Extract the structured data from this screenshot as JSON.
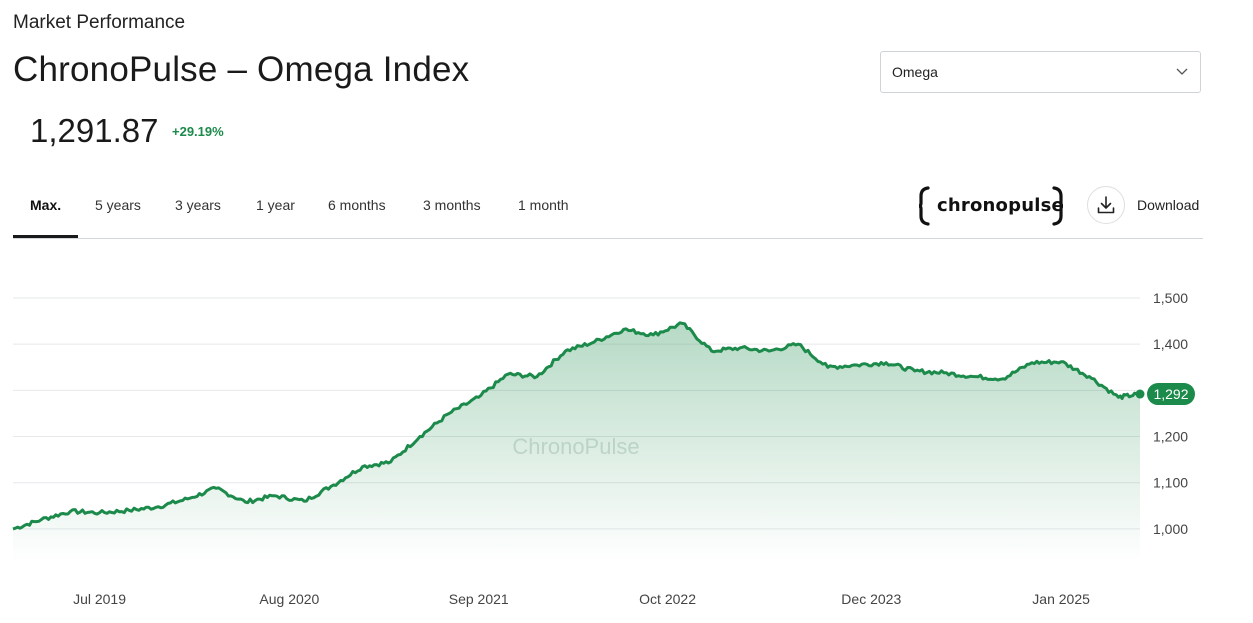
{
  "header": {
    "eyebrow": "Market Performance",
    "title": "ChronoPulse – Omega Index"
  },
  "index_select": {
    "value": "Omega",
    "icon": "chevron-down-icon"
  },
  "quote": {
    "price": "1,291.87",
    "change": "+29.19%",
    "change_color": "#1b8a4a"
  },
  "tabs": [
    {
      "label": "Max.",
      "active": true
    },
    {
      "label": "5 years",
      "active": false
    },
    {
      "label": "3 years",
      "active": false
    },
    {
      "label": "1 year",
      "active": false
    },
    {
      "label": "6 months",
      "active": false
    },
    {
      "label": "3 months",
      "active": false
    },
    {
      "label": "1 month",
      "active": false
    }
  ],
  "brand": {
    "logo_text": "chronopulse"
  },
  "download": {
    "label": "Download",
    "icon": "download-icon"
  },
  "chart_data": {
    "type": "area",
    "watermark": "ChronoPulse",
    "line_color": "#1b8a4a",
    "fill_color": "#1b8a4a",
    "y_ticks": [
      "1,000",
      "1,100",
      "1,200",
      "1,300",
      "1,400",
      "1,500"
    ],
    "y_tick_values": [
      1000,
      1100,
      1200,
      1300,
      1400,
      1500
    ],
    "ylim": [
      950,
      1500
    ],
    "y_labels_shown": [
      "1,000",
      "1,100",
      "1,200",
      "1,400",
      "1,500"
    ],
    "x_ticks": [
      "Jul 2019",
      "Aug 2020",
      "Sep 2021",
      "Oct 2022",
      "Dec 2023",
      "Jan 2025"
    ],
    "x_tick_values": [
      "2019-07-01",
      "2020-08-01",
      "2021-09-01",
      "2022-10-01",
      "2023-12-01",
      "2025-01-01"
    ],
    "last_value_label": "1,292",
    "series": [
      {
        "x": [
          "2019-01-01",
          "2019-03-01",
          "2019-05-01",
          "2019-07-01",
          "2019-09-01",
          "2019-11-01",
          "2020-01-01",
          "2020-03-01",
          "2020-05-01",
          "2020-07-01",
          "2020-09-01",
          "2020-11-01",
          "2021-01-01",
          "2021-03-01",
          "2021-05-01",
          "2021-07-01",
          "2021-09-01",
          "2021-11-01",
          "2022-01-01",
          "2022-03-01",
          "2022-05-01",
          "2022-07-01",
          "2022-09-01",
          "2022-11-01",
          "2023-01-01",
          "2023-03-01",
          "2023-05-01",
          "2023-07-01",
          "2023-09-01",
          "2023-11-01",
          "2024-01-01",
          "2024-03-01",
          "2024-05-01",
          "2024-07-01",
          "2024-09-01",
          "2024-11-01",
          "2025-01-01",
          "2025-03-01",
          "2025-05-01",
          "2025-06-15"
        ],
        "values": [
          1000,
          1020,
          1038,
          1035,
          1040,
          1048,
          1065,
          1088,
          1058,
          1072,
          1060,
          1095,
          1135,
          1145,
          1200,
          1250,
          1285,
          1335,
          1330,
          1385,
          1405,
          1432,
          1420,
          1445,
          1385,
          1392,
          1385,
          1400,
          1350,
          1355,
          1360,
          1342,
          1338,
          1330,
          1325,
          1360,
          1362,
          1330,
          1285,
          1292
        ]
      }
    ]
  }
}
